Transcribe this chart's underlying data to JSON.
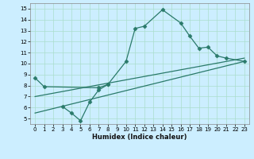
{
  "title": "",
  "xlabel": "Humidex (Indice chaleur)",
  "background_color": "#cceeff",
  "line_color": "#2a7a6a",
  "grid_color": "#aaddcc",
  "xlim": [
    -0.5,
    23.5
  ],
  "ylim": [
    4.5,
    15.5
  ],
  "xticks": [
    0,
    1,
    2,
    3,
    4,
    5,
    6,
    7,
    8,
    9,
    10,
    11,
    12,
    13,
    14,
    15,
    16,
    17,
    18,
    19,
    20,
    21,
    22,
    23
  ],
  "yticks": [
    5,
    6,
    7,
    8,
    9,
    10,
    11,
    12,
    13,
    14,
    15
  ],
  "series1_x": [
    0,
    1,
    7,
    8,
    10,
    11,
    12,
    14,
    16,
    17,
    18,
    19,
    20,
    21,
    23
  ],
  "series1_y": [
    8.7,
    7.9,
    7.8,
    8.1,
    10.2,
    13.2,
    13.4,
    14.9,
    13.7,
    12.5,
    11.4,
    11.5,
    10.7,
    10.5,
    10.2
  ],
  "series2_x": [
    3,
    4,
    5,
    6,
    7,
    8
  ],
  "series2_y": [
    6.1,
    5.5,
    4.8,
    6.5,
    7.6,
    8.1
  ],
  "line1_x": [
    0,
    23
  ],
  "line1_y": [
    7.0,
    10.5
  ],
  "line2_x": [
    0,
    23
  ],
  "line2_y": [
    5.5,
    10.2
  ]
}
